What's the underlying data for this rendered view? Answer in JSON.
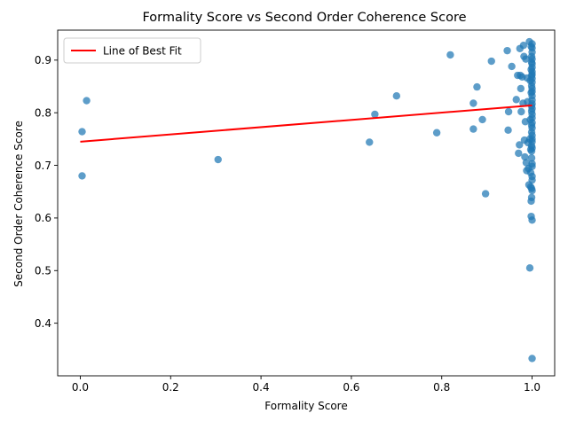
{
  "chart_data": {
    "type": "scatter",
    "title": "Formality Score vs Second Order Coherence Score",
    "xlabel": "Formality Score",
    "ylabel": "Second Order Coherence Score",
    "xlim": [
      -0.05,
      1.05
    ],
    "ylim": [
      0.3,
      0.957
    ],
    "x_ticks": [
      0.0,
      0.2,
      0.4,
      0.6,
      0.8,
      1.0
    ],
    "x_tick_labels": [
      "0.0",
      "0.2",
      "0.4",
      "0.6",
      "0.8",
      "1.0"
    ],
    "y_ticks": [
      0.4,
      0.5,
      0.6,
      0.7,
      0.8,
      0.9
    ],
    "y_tick_labels": [
      "0.4",
      "0.5",
      "0.6",
      "0.7",
      "0.8",
      "0.9"
    ],
    "grid": false,
    "legend": {
      "placement": "top-left",
      "entries": [
        "Line of Best Fit"
      ]
    },
    "series": [
      {
        "kind": "scatter",
        "color": "#1f77b4",
        "points": [
          [
            0.004,
            0.764
          ],
          [
            0.004,
            0.68
          ],
          [
            0.014,
            0.823
          ],
          [
            0.305,
            0.711
          ],
          [
            0.64,
            0.744
          ],
          [
            0.652,
            0.797
          ],
          [
            0.7,
            0.832
          ],
          [
            0.789,
            0.762
          ],
          [
            0.819,
            0.91
          ],
          [
            0.87,
            0.818
          ],
          [
            0.87,
            0.769
          ],
          [
            0.878,
            0.849
          ],
          [
            0.89,
            0.787
          ],
          [
            0.897,
            0.646
          ],
          [
            0.91,
            0.898
          ],
          [
            0.945,
            0.918
          ],
          [
            0.947,
            0.767
          ],
          [
            0.948,
            0.802
          ],
          [
            0.955,
            0.888
          ],
          [
            0.965,
            0.825
          ],
          [
            0.968,
            0.871
          ],
          [
            0.97,
            0.723
          ],
          [
            0.972,
            0.739
          ],
          [
            0.973,
            0.922
          ],
          [
            0.974,
            0.871
          ],
          [
            0.975,
            0.846
          ],
          [
            0.976,
            0.802
          ],
          [
            0.978,
            0.868
          ],
          [
            0.98,
            0.818
          ],
          [
            0.981,
            0.928
          ],
          [
            0.982,
            0.907
          ],
          [
            0.983,
            0.748
          ],
          [
            0.984,
            0.716
          ],
          [
            0.985,
            0.783
          ],
          [
            0.986,
            0.902
          ],
          [
            0.987,
            0.705
          ],
          [
            0.988,
            0.69
          ],
          [
            0.989,
            0.866
          ],
          [
            0.99,
            0.821
          ],
          [
            0.991,
            0.743
          ],
          [
            0.992,
            0.694
          ],
          [
            0.993,
            0.663
          ],
          [
            0.994,
            0.935
          ],
          [
            0.995,
            0.505
          ],
          [
            0.995,
            0.75
          ],
          [
            0.996,
            0.861
          ],
          [
            0.996,
            0.787
          ],
          [
            0.997,
            0.73
          ],
          [
            0.997,
            0.686
          ],
          [
            0.997,
            0.659
          ],
          [
            0.998,
            0.632
          ],
          [
            0.998,
            0.603
          ],
          [
            0.998,
            0.926
          ],
          [
            0.998,
            0.882
          ],
          [
            0.998,
            0.838
          ],
          [
            0.999,
            0.907
          ],
          [
            0.999,
            0.896
          ],
          [
            0.999,
            0.87
          ],
          [
            0.999,
            0.851
          ],
          [
            0.999,
            0.813
          ],
          [
            0.999,
            0.803
          ],
          [
            0.999,
            0.776
          ],
          [
            0.999,
            0.763
          ],
          [
            0.999,
            0.737
          ],
          [
            0.999,
            0.727
          ],
          [
            0.999,
            0.714
          ],
          [
            0.999,
            0.656
          ],
          [
            0.999,
            0.639
          ],
          [
            1.0,
            0.931
          ],
          [
            1.0,
            0.923
          ],
          [
            1.0,
            0.915
          ],
          [
            1.0,
            0.902
          ],
          [
            1.0,
            0.893
          ],
          [
            1.0,
            0.886
          ],
          [
            1.0,
            0.878
          ],
          [
            1.0,
            0.873
          ],
          [
            1.0,
            0.865
          ],
          [
            1.0,
            0.858
          ],
          [
            1.0,
            0.846
          ],
          [
            1.0,
            0.84
          ],
          [
            1.0,
            0.832
          ],
          [
            1.0,
            0.824
          ],
          [
            1.0,
            0.817
          ],
          [
            1.0,
            0.808
          ],
          [
            1.0,
            0.797
          ],
          [
            1.0,
            0.79
          ],
          [
            1.0,
            0.781
          ],
          [
            1.0,
            0.771
          ],
          [
            1.0,
            0.757
          ],
          [
            1.0,
            0.75
          ],
          [
            1.0,
            0.745
          ],
          [
            1.0,
            0.733
          ],
          [
            1.0,
            0.703
          ],
          [
            1.0,
            0.698
          ],
          [
            1.0,
            0.679
          ],
          [
            1.0,
            0.672
          ],
          [
            1.0,
            0.652
          ],
          [
            1.0,
            0.596
          ],
          [
            1.0,
            0.333
          ]
        ]
      },
      {
        "kind": "line",
        "name": "Line of Best Fit",
        "color": "#ff0000",
        "points": [
          [
            0.0,
            0.745
          ],
          [
            1.0,
            0.814
          ]
        ]
      }
    ]
  }
}
